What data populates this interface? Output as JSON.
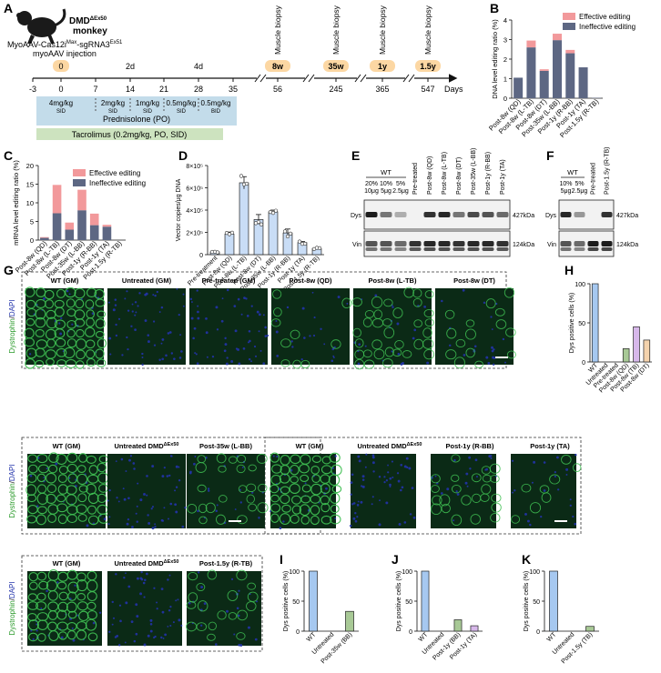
{
  "colors": {
    "effective": "#f2999b",
    "ineffective": "#5d6783",
    "bar_light_blue": "#c9ddf6",
    "hist_blue": "#a6c8f0",
    "hist_green": "#a8c996",
    "hist_purple": "#d7b8ea",
    "hist_peach": "#f4d3ad",
    "prednisolone_box": "#c3dcea",
    "tacrolimus_box": "#cde3bf",
    "timepoint_badge": "#fcd7a3",
    "fluor_bg": "#0b2a16",
    "fluor_green": "#3fbf52",
    "fluor_blue": "#2233aa"
  },
  "panel_labels": [
    "A",
    "B",
    "C",
    "D",
    "E",
    "F",
    "G",
    "H",
    "I",
    "J",
    "K"
  ],
  "panel_a": {
    "animal_name": "DMD",
    "animal_superscript": "ΔEx50",
    "animal_label2": "monkey",
    "treatment_line1_prefix": "MyoAAV-Cas12i",
    "treatment_line1_sup1": "Max",
    "treatment_line1_mid": "-sgRNA3",
    "treatment_line1_sup2": "Ex51",
    "treatment_line2": "myoAAV injection",
    "day0_badge": "0",
    "day_above": [
      {
        "label": "2d"
      },
      {
        "label": "4d"
      }
    ],
    "ticks": [
      "-3",
      "0",
      "7",
      "14",
      "21",
      "28",
      "35",
      "56",
      "245",
      "365",
      "547"
    ],
    "days_label": "Days",
    "biopsies": [
      {
        "caption": "Muscle biopsy",
        "badge": "8w"
      },
      {
        "caption": "Muscle biopsy",
        "badge": "35w"
      },
      {
        "caption": "Muscle biopsy",
        "badge": "1y"
      },
      {
        "caption": "Muscle biopsy",
        "badge": "1.5y"
      }
    ],
    "pred_doses": [
      {
        "dose": "4mg/kg",
        "freq": "SID"
      },
      {
        "dose": "2mg/kg",
        "freq": "SID"
      },
      {
        "dose": "1mg/kg",
        "freq": "SID"
      },
      {
        "dose": "0.5mg/kg",
        "freq": "SID"
      },
      {
        "dose": "0.5mg/kg",
        "freq": "BID"
      }
    ],
    "prednisolone": "Prednisolone (PO)",
    "tacrolimus": "Tacrolimus (0.2mg/kg, PO, SID)"
  },
  "chart_data": [
    {
      "panel": "B",
      "type": "bar",
      "stacked": true,
      "ylabel": "DNA level editing ratio (%)",
      "ylim": [
        0,
        4
      ],
      "yticks": [
        "0",
        "1",
        "2",
        "3",
        "4"
      ],
      "categories": [
        "Post-8w (QD)",
        "Post-8w (L-TB)",
        "Post-8w (DT)",
        "Post-35w (L-BB)",
        "Post-1y (R-BB)",
        "Post-1y (TA)",
        "Post-1.5y (R-TB)"
      ],
      "series": [
        {
          "name": "Ineffective editing",
          "values": [
            1.05,
            2.6,
            1.4,
            2.97,
            2.3,
            1.58,
            0.02
          ]
        },
        {
          "name": "Effective editing",
          "values": [
            0.0,
            0.35,
            0.08,
            0.33,
            0.17,
            0.0,
            0.0
          ]
        }
      ],
      "legend": "top-right"
    },
    {
      "panel": "C",
      "type": "bar",
      "stacked": true,
      "ylabel": "mRNA level editing ratio (%)",
      "ylim": [
        0,
        20
      ],
      "yticks": [
        "0",
        "5",
        "10",
        "15",
        "20"
      ],
      "categories": [
        "Post-8w (QD)",
        "Post-8w (L-TB)",
        "Post-8w (DT)",
        "Post-35w (L-BB)",
        "Post-1y (R-BB)",
        "Post-1y (TA)",
        "Post-1.5y (R-TB)"
      ],
      "series": [
        {
          "name": "Ineffective editing",
          "values": [
            0.6,
            7.2,
            2.8,
            8.0,
            4.0,
            3.6,
            0.0
          ]
        },
        {
          "name": "Effective editing",
          "values": [
            0.2,
            7.6,
            1.9,
            5.5,
            3.1,
            0.5,
            0.0
          ]
        }
      ],
      "legend": "top-right"
    },
    {
      "panel": "D",
      "type": "bar",
      "ylabel": "Vector copies/μg DNA",
      "ylim": [
        0,
        800000
      ],
      "yticks": [
        "0",
        "2×10⁵",
        "4×10⁵",
        "6×10⁵",
        "8×10⁵"
      ],
      "categories": [
        "Pre-treatment",
        "Post-8w (QD)",
        "Post-8w (L-TB)",
        "Post-8w (DT)",
        "Post-35w (L-BB)",
        "Post-1y (R-BB)",
        "Post-1y (TA)",
        "Post-1.5y (R-TB)"
      ],
      "values": [
        25000,
        185000,
        645000,
        315000,
        385000,
        195000,
        108000,
        55000
      ],
      "errors": [
        5000,
        18000,
        55000,
        45000,
        15000,
        35000,
        10000,
        6000
      ]
    },
    {
      "panel": "H",
      "type": "bar",
      "ylabel": "Dys positive cells (%)",
      "ylim": [
        0,
        100
      ],
      "yticks": [
        "0",
        "50",
        "100"
      ],
      "categories": [
        "WT",
        "Untreated",
        "Pre-treated",
        "Post-8w (QD)",
        "Post-8w (TB)",
        "Post-8w (DT)"
      ],
      "values": [
        100,
        0,
        0,
        17,
        45,
        28
      ]
    },
    {
      "panel": "I",
      "type": "bar",
      "ylabel": "Dys positive cells (%)",
      "ylim": [
        0,
        100
      ],
      "yticks": [
        "0",
        "50",
        "100"
      ],
      "categories": [
        "WT",
        "Untreated",
        "Post-35w (BB)"
      ],
      "values": [
        100,
        0,
        33
      ]
    },
    {
      "panel": "J",
      "type": "bar",
      "ylabel": "Dys positive cells (%)",
      "ylim": [
        0,
        100
      ],
      "yticks": [
        "0",
        "50",
        "100"
      ],
      "categories": [
        "WT",
        "Untreated",
        "Post-1y (BB)",
        "Post-1y (TA)"
      ],
      "values": [
        100,
        0,
        19,
        9
      ]
    },
    {
      "panel": "K",
      "type": "bar",
      "ylabel": "Dys positive cells (%)",
      "ylim": [
        0,
        100
      ],
      "yticks": [
        "0",
        "50",
        "100"
      ],
      "categories": [
        "WT",
        "Untreated",
        "Post-1.5y (TB)"
      ],
      "values": [
        100,
        0,
        8
      ]
    }
  ],
  "panel_e": {
    "wt_label": "WT",
    "wt_pcts": [
      "20%",
      "10%",
      "5%"
    ],
    "wt_amounts": [
      "10μg",
      "5μg",
      "2.5μg"
    ],
    "lanes": [
      "Pre-treated",
      "Post-8w (QD)",
      "Post-8w (L-TB)",
      "Post-8w (DT)",
      "Post-35w (L-BB)",
      "Post-1y (R-BB)",
      "Post-1y (TA)"
    ],
    "rows": [
      {
        "name": "Dys",
        "kda": "427kDa"
      },
      {
        "name": "Vin",
        "kda": "124kDa"
      }
    ]
  },
  "panel_f": {
    "wt_label": "WT",
    "wt_pcts": [
      "10%",
      "5%"
    ],
    "wt_amounts": [
      "5μg",
      "2.5μg"
    ],
    "lanes": [
      "Pre-treated",
      "Post-1.5y (R-TB)"
    ],
    "rows": [
      {
        "name": "Dys",
        "kda": "427kDa"
      },
      {
        "name": "Vin",
        "kda": "124kDa"
      }
    ]
  },
  "panel_g": {
    "stain_label_green": "Dystrophin",
    "stain_label_sep": "/",
    "stain_label_blue": "DAPI",
    "row1": [
      "WT (GM)",
      "Untreated (GM)",
      "Pre-treated (GM)",
      "Post-8w (QD)",
      "Post-8w (L-TB)",
      "Post-8w (DT)"
    ],
    "row2_left": [
      {
        "main": "WT (GM)",
        "sup": ""
      },
      {
        "main": "Untreated DMD",
        "sup": "ΔEx50"
      },
      {
        "main": "Post-35w (L-BB)",
        "sup": ""
      }
    ],
    "row2_right": [
      {
        "main": "WT (GM)",
        "sup": ""
      },
      {
        "main": "Untreated DMD",
        "sup": "ΔEx50"
      },
      {
        "main": "Post-1y (R-BB)",
        "sup": ""
      },
      {
        "main": "Post-1y (TA)",
        "sup": ""
      }
    ],
    "row3": [
      {
        "main": "WT (GM)",
        "sup": ""
      },
      {
        "main": "Untreated DMD",
        "sup": "ΔEx50"
      },
      {
        "main": "Post-1.5y (R-TB)",
        "sup": ""
      }
    ]
  }
}
